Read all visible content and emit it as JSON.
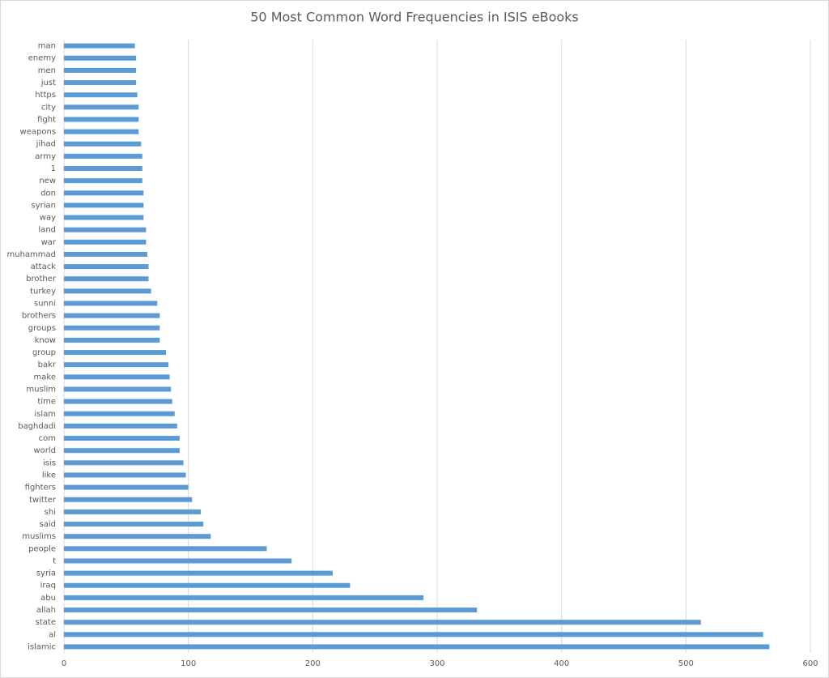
{
  "chart_data": {
    "type": "barh",
    "title": "50 Most Common Word Frequencies in ISIS eBooks",
    "categories": [
      "man",
      "enemy",
      "men",
      "just",
      "https",
      "city",
      "fight",
      "weapons",
      "jihad",
      "army",
      "1",
      "new",
      "don",
      "syrian",
      "way",
      "land",
      "war",
      "muhammad",
      "attack",
      "brother",
      "turkey",
      "sunni",
      "brothers",
      "groups",
      "know",
      "group",
      "bakr",
      "make",
      "muslim",
      "time",
      "islam",
      "baghdadi",
      "com",
      "world",
      "isis",
      "like",
      "fighters",
      "twitter",
      "shi",
      "said",
      "muslims",
      "people",
      "t",
      "syria",
      "iraq",
      "abu",
      "allah",
      "state",
      "al",
      "islamic"
    ],
    "values": [
      57,
      58,
      58,
      58,
      59,
      60,
      60,
      60,
      62,
      63,
      63,
      63,
      64,
      64,
      64,
      66,
      66,
      67,
      68,
      68,
      70,
      75,
      77,
      77,
      77,
      82,
      84,
      85,
      86,
      87,
      89,
      91,
      93,
      93,
      96,
      98,
      100,
      103,
      110,
      112,
      118,
      163,
      183,
      216,
      230,
      289,
      332,
      512,
      562,
      567
    ],
    "color": "#5b9bd5",
    "xlim": [
      0,
      600
    ],
    "xticks": [
      0,
      100,
      200,
      300,
      400,
      500,
      600
    ],
    "grid": true
  }
}
